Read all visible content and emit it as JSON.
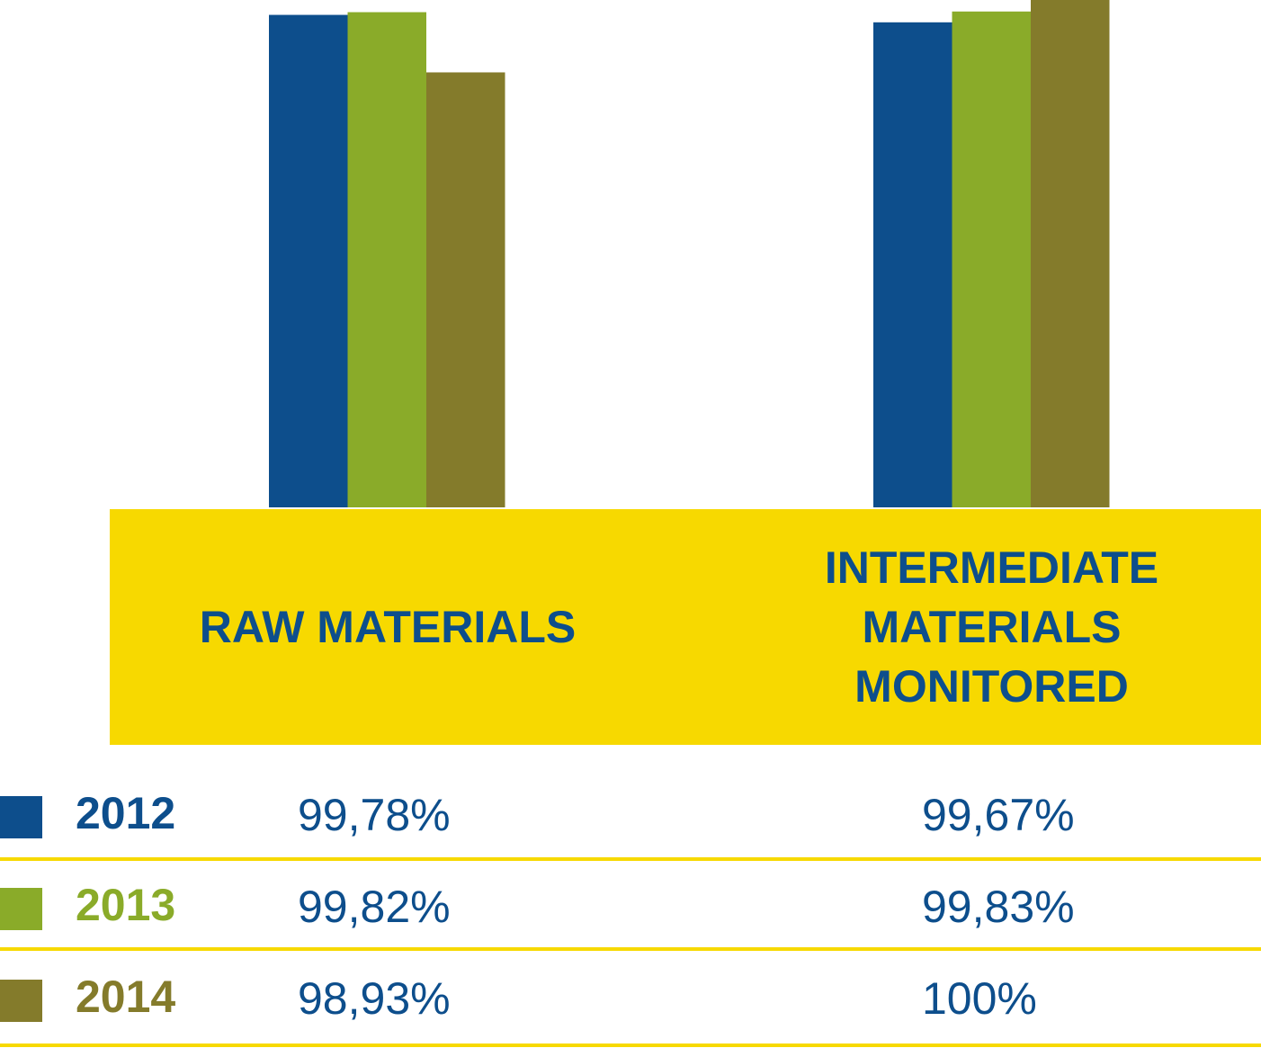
{
  "chart_data": {
    "type": "bar",
    "categories": [
      "RAW MATERIALS",
      "INTERMEDIATE\nMATERIALS\nMONITORED"
    ],
    "series": [
      {
        "name": "2012",
        "color": "#0d4e8c",
        "values": [
          99.78,
          99.67
        ],
        "labels": [
          "99,78%",
          "99,67%"
        ]
      },
      {
        "name": "2013",
        "color": "#8aab29",
        "values": [
          99.82,
          99.83
        ],
        "labels": [
          "99,82%",
          "99,83%"
        ]
      },
      {
        "name": "2014",
        "color": "#847b2b",
        "values": [
          98.93,
          100
        ],
        "labels": [
          "98,93%",
          "100%"
        ]
      }
    ],
    "category_band_color": "#f7d900",
    "label_color": "#0d4e8c",
    "legend_position": "bottom-left"
  }
}
